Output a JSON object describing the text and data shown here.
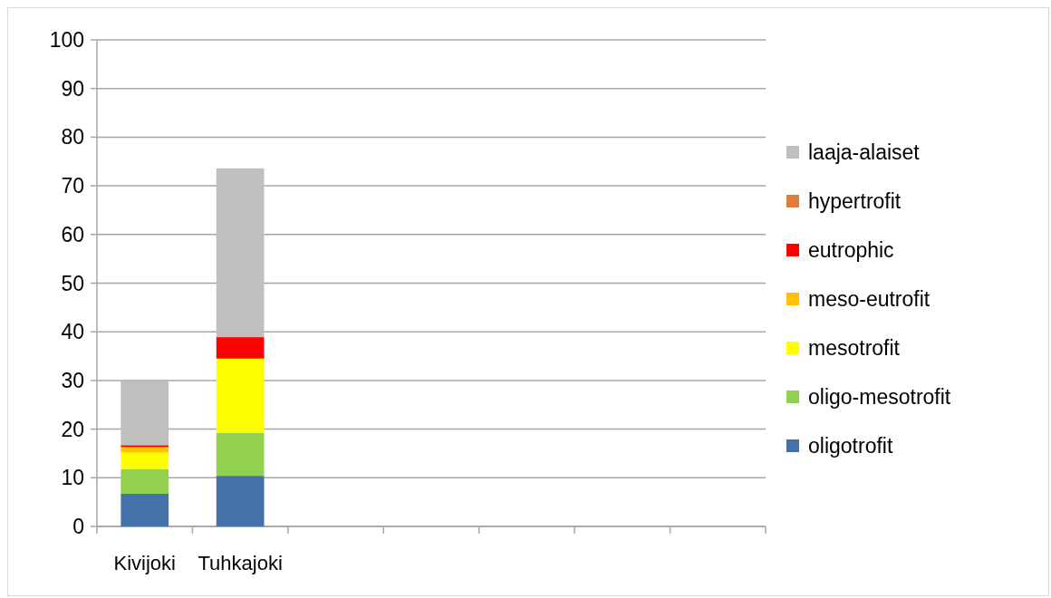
{
  "chart_data": {
    "type": "bar",
    "stacked": true,
    "categories": [
      "Kivijoki",
      "Tuhkajoki",
      null,
      null,
      null,
      null,
      null
    ],
    "series": [
      {
        "name": "oligotrofit",
        "color": "#4472a8",
        "values": [
          6.7,
          10.4,
          null,
          null,
          null,
          null,
          null
        ]
      },
      {
        "name": "oligo-mesotrofit",
        "color": "#92d050",
        "values": [
          5.1,
          8.8,
          null,
          null,
          null,
          null,
          null
        ]
      },
      {
        "name": "mesotrofit",
        "color": "#ffff00",
        "values": [
          3.4,
          15.3,
          null,
          null,
          null,
          null,
          null
        ]
      },
      {
        "name": "meso-eutrofit",
        "color": "#ffc000",
        "values": [
          1.1,
          0,
          null,
          null,
          null,
          null,
          null
        ]
      },
      {
        "name": "eutrophic",
        "color": "#ff0000",
        "values": [
          0.4,
          4.4,
          null,
          null,
          null,
          null,
          null
        ]
      },
      {
        "name": "hypertrofit",
        "color": "#e07b39",
        "values": [
          0,
          0,
          null,
          null,
          null,
          null,
          null
        ]
      },
      {
        "name": "laaja-alaiset",
        "color": "#bfbfbf",
        "values": [
          13.2,
          34.7,
          null,
          null,
          null,
          null,
          null
        ]
      }
    ],
    "ylim": [
      0,
      100
    ],
    "yticks": [
      0,
      10,
      20,
      30,
      40,
      50,
      60,
      70,
      80,
      90,
      100
    ],
    "grid": "y",
    "legend": "right"
  }
}
